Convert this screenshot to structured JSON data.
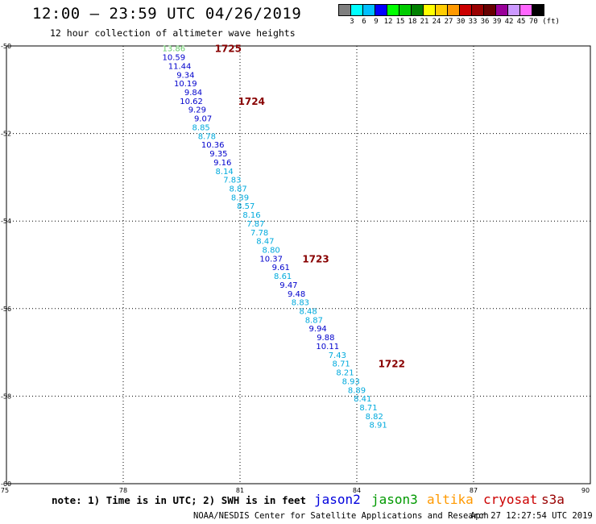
{
  "title": "12:00 – 23:59 UTC 04/26/2019",
  "subtitle": "12 hour collection of altimeter wave heights",
  "color_scale": {
    "swatches": [
      "#7f7f7f",
      "#00ffff",
      "#00bfff",
      "#0000ff",
      "#00ff00",
      "#00cc00",
      "#008000",
      "#ffff00",
      "#ffcc00",
      "#ff9900",
      "#cc0000",
      "#990000",
      "#660000",
      "#990099",
      "#cc99ff",
      "#ff66ff",
      "#000000"
    ],
    "labels": [
      "3",
      "6",
      "9",
      "12",
      "15",
      "18",
      "21",
      "24",
      "27",
      "30",
      "33",
      "36",
      "39",
      "42",
      "45",
      "70 (ft)"
    ]
  },
  "note": "note: 1) Time is in UTC; 2) SWH is in feet",
  "satellites": [
    {
      "name": "jason2",
      "color": "#0000dd"
    },
    {
      "name": "jason3",
      "color": "#009900"
    },
    {
      "name": "altika",
      "color": "#ff9900"
    },
    {
      "name": "cryosat",
      "color": "#cc0000"
    },
    {
      "name": "s3a",
      "color": "#990000"
    }
  ],
  "credit": "NOAA/NESDIS Center for Satellite Applications and Research",
  "timestamp": "Apr 27 12:27:54 UTC 2019",
  "chart_data": {
    "type": "scatter",
    "xlim": [
      75,
      90
    ],
    "ylim": [
      -60,
      -50
    ],
    "x_ticks": [
      "75",
      "78",
      "81",
      "84",
      "87",
      "90"
    ],
    "y_ticks": [
      "-50",
      "-52",
      "-54",
      "-56",
      "-58",
      "-60"
    ],
    "grid": true,
    "points": [
      {
        "x": 79.3,
        "y": -50.05,
        "v": "13.86",
        "c": "#66cc66"
      },
      {
        "x": 79.3,
        "y": -50.25,
        "v": "10.59",
        "c": "#0000cc"
      },
      {
        "x": 79.45,
        "y": -50.45,
        "v": "11.44",
        "c": "#0000cc"
      },
      {
        "x": 79.6,
        "y": -50.65,
        "v": "9.34",
        "c": "#0000cc"
      },
      {
        "x": 79.6,
        "y": -50.85,
        "v": "10.19",
        "c": "#0000cc"
      },
      {
        "x": 79.8,
        "y": -51.05,
        "v": "9.84",
        "c": "#0000cc"
      },
      {
        "x": 79.75,
        "y": -51.25,
        "v": "10.62",
        "c": "#0000cc"
      },
      {
        "x": 79.9,
        "y": -51.45,
        "v": "9.29",
        "c": "#0000cc"
      },
      {
        "x": 80.05,
        "y": -51.65,
        "v": "9.07",
        "c": "#0000cc"
      },
      {
        "x": 80.0,
        "y": -51.85,
        "v": "8.85",
        "c": "#00aadd"
      },
      {
        "x": 80.15,
        "y": -52.05,
        "v": "8.78",
        "c": "#00aadd"
      },
      {
        "x": 80.3,
        "y": -52.25,
        "v": "10.36",
        "c": "#0000cc"
      },
      {
        "x": 80.45,
        "y": -52.45,
        "v": "9.35",
        "c": "#0000cc"
      },
      {
        "x": 80.55,
        "y": -52.65,
        "v": "9.16",
        "c": "#0000cc"
      },
      {
        "x": 80.6,
        "y": -52.85,
        "v": "8.14",
        "c": "#00aadd"
      },
      {
        "x": 80.8,
        "y": -53.05,
        "v": "7.83",
        "c": "#00aadd"
      },
      {
        "x": 80.95,
        "y": -53.25,
        "v": "8.87",
        "c": "#00aadd"
      },
      {
        "x": 81.0,
        "y": -53.45,
        "v": "8.39",
        "c": "#00aadd"
      },
      {
        "x": 81.15,
        "y": -53.65,
        "v": "8.57",
        "c": "#00aadd"
      },
      {
        "x": 81.3,
        "y": -53.85,
        "v": "8.16",
        "c": "#00aadd"
      },
      {
        "x": 81.4,
        "y": -54.05,
        "v": "7.87",
        "c": "#00aadd"
      },
      {
        "x": 81.5,
        "y": -54.25,
        "v": "7.78",
        "c": "#00aadd"
      },
      {
        "x": 81.65,
        "y": -54.45,
        "v": "8.47",
        "c": "#00aadd"
      },
      {
        "x": 81.8,
        "y": -54.65,
        "v": "8.80",
        "c": "#00aadd"
      },
      {
        "x": 81.8,
        "y": -54.85,
        "v": "10.37",
        "c": "#0000cc"
      },
      {
        "x": 82.05,
        "y": -55.05,
        "v": "9.61",
        "c": "#0000cc"
      },
      {
        "x": 82.1,
        "y": -55.25,
        "v": "8.61",
        "c": "#00aadd"
      },
      {
        "x": 82.25,
        "y": -55.45,
        "v": "9.47",
        "c": "#0000cc"
      },
      {
        "x": 82.45,
        "y": -55.65,
        "v": "9.48",
        "c": "#0000cc"
      },
      {
        "x": 82.55,
        "y": -55.85,
        "v": "8.83",
        "c": "#00aadd"
      },
      {
        "x": 82.75,
        "y": -56.05,
        "v": "8.48",
        "c": "#00aadd"
      },
      {
        "x": 82.9,
        "y": -56.25,
        "v": "8.87",
        "c": "#00aadd"
      },
      {
        "x": 83.0,
        "y": -56.45,
        "v": "9.94",
        "c": "#0000cc"
      },
      {
        "x": 83.2,
        "y": -56.65,
        "v": "9.88",
        "c": "#0000cc"
      },
      {
        "x": 83.25,
        "y": -56.85,
        "v": "10.11",
        "c": "#0000cc"
      },
      {
        "x": 83.5,
        "y": -57.05,
        "v": "7.43",
        "c": "#00aadd"
      },
      {
        "x": 83.6,
        "y": -57.25,
        "v": "8.71",
        "c": "#00aadd"
      },
      {
        "x": 83.7,
        "y": -57.45,
        "v": "8.21",
        "c": "#00aadd"
      },
      {
        "x": 83.85,
        "y": -57.65,
        "v": "8.93",
        "c": "#00aadd"
      },
      {
        "x": 84.0,
        "y": -57.85,
        "v": "8.89",
        "c": "#00aadd"
      },
      {
        "x": 84.15,
        "y": -58.05,
        "v": "8.41",
        "c": "#00aadd"
      },
      {
        "x": 84.3,
        "y": -58.25,
        "v": "8.71",
        "c": "#00aadd"
      },
      {
        "x": 84.45,
        "y": -58.45,
        "v": "8.82",
        "c": "#00aadd"
      },
      {
        "x": 84.55,
        "y": -58.65,
        "v": "8.91",
        "c": "#00aadd"
      }
    ],
    "annotations": [
      {
        "x": 80.35,
        "y": -50.05,
        "text": "1725",
        "c": "#880000"
      },
      {
        "x": 80.95,
        "y": -51.25,
        "text": "1724",
        "c": "#880000"
      },
      {
        "x": 82.6,
        "y": -54.85,
        "text": "1723",
        "c": "#880000"
      },
      {
        "x": 84.55,
        "y": -57.25,
        "text": "1722",
        "c": "#880000"
      }
    ]
  }
}
